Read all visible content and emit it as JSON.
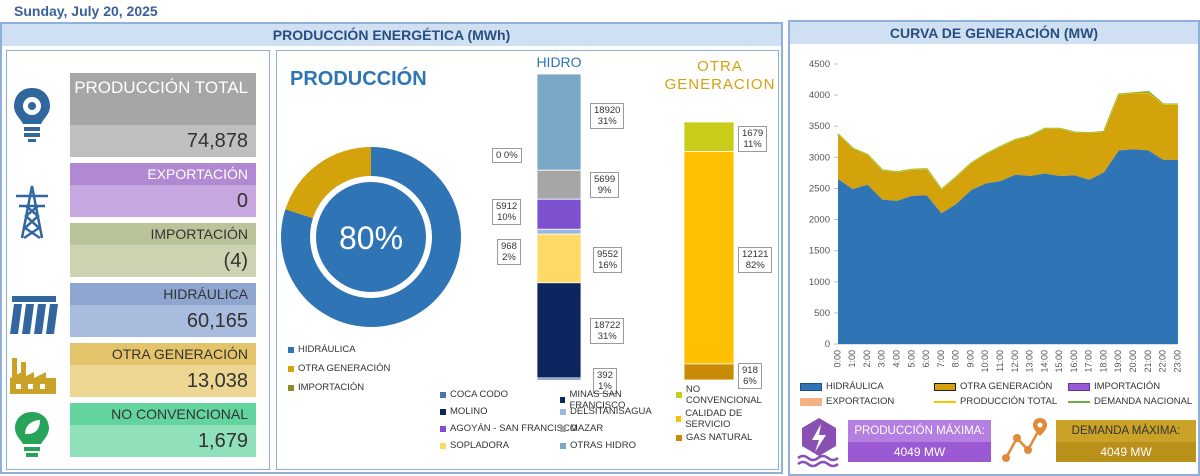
{
  "date": "Sunday, July 20, 2025",
  "left_panel": {
    "title": "PRODUCCIÓN ENERGÉTICA (MWh)",
    "kpis": [
      {
        "label": "PRODUCCIÓN TOTAL",
        "value": "74,878",
        "color": "#a6a6a6",
        "value_bg": "#bfbfbf",
        "icon": "bulb-gear-icon"
      },
      {
        "label": "EXPORTACIÓN",
        "value": "0",
        "color": "#b188d2",
        "value_bg": "#c7a7df",
        "icon": "transmission-tower-icon"
      },
      {
        "label": "IMPORTACIÓN",
        "value": "(4)",
        "color": "#b9c49a",
        "value_bg": "#cbd3b1",
        "icon": ""
      },
      {
        "label": "HIDRÁULICA",
        "value": "60,165",
        "color": "#8ea5cf",
        "value_bg": "#a9bcdd",
        "icon": "dam-icon"
      },
      {
        "label": "OTRA GENERACIÓN",
        "value": "13,038",
        "color": "#e4c46a",
        "value_bg": "#ecd692",
        "icon": "factory-icon"
      },
      {
        "label": "NO CONVENCIONAL",
        "value": "1,679",
        "color": "#63d49d",
        "value_bg": "#90e0b9",
        "icon": "eco-bulb-icon"
      }
    ]
  },
  "production_chart": {
    "title": "PRODUCCIÓN",
    "center_label": "80%",
    "legend": [
      "HIDRÁULICA",
      "OTRA GENERACIÓN",
      "IMPORTACIÓN"
    ],
    "hidro_title": "HIDRO",
    "otra_title_line1": "OTRA",
    "otra_title_line2": "GENERACION",
    "hidro_legend": [
      "COCA CODO",
      "MINAS SAN FRANCISCO",
      "MOLINO",
      "DELSITANISAGUA",
      "AGOYÁN - SAN FRANCISCO",
      "MAZAR",
      "SOPLADORA",
      "OTRAS HIDRO"
    ],
    "otra_legend": [
      "NO CONVENCIONAL",
      "CALIDAD DE SERVICIO",
      "GAS NATURAL"
    ],
    "hidro_callouts": {
      "c1_v": "18920",
      "c1_p": "31%",
      "c2": "0  0%",
      "c3_v": "5699",
      "c3_p": "9%",
      "c4_v": "5912",
      "c4_p": "10%",
      "c5_v": "968",
      "c5_p": "2%",
      "c6_v": "9552",
      "c6_p": "16%",
      "c7_v": "18722",
      "c7_p": "31%",
      "c8_v": "392",
      "c8_p": "1%"
    },
    "otra_callouts": {
      "c1_v": "1679",
      "c1_p": "11%",
      "c2_v": "12121",
      "c2_p": "82%",
      "c3_v": "918",
      "c3_p": "6%"
    }
  },
  "right_panel": {
    "title": "CURVA DE GENERACIÓN (MW)",
    "legend": [
      "HIDRÁULICA",
      "OTRA GENERACIÓN",
      "IMPORTACIÓN",
      "EXPORTACION",
      "PRODUCCIÓN TOTAL",
      "DEMANDA NACIONAL"
    ],
    "stat1_label": "PRODUCCIÓN MÁXIMA:",
    "stat1_value": "4049 MW",
    "stat2_label": "DEMANDA MÁXIMA:",
    "stat2_value": "4049 MW"
  },
  "colors": {
    "hidraulica": "#2f75b6",
    "otra": "#d4a20a",
    "importacion": "#8d8a2a",
    "stat1": "#b47fe0",
    "stat2": "#c9a227"
  },
  "chart_data": [
    {
      "type": "pie",
      "title": "PRODUCCIÓN",
      "labels": [
        "HIDRÁULICA",
        "OTRA GENERACIÓN",
        "IMPORTACIÓN"
      ],
      "values": [
        80,
        20,
        0
      ],
      "center_label": "80%"
    },
    {
      "type": "bar",
      "title": "HIDRO",
      "stacked": true,
      "categories": [
        "OTRAS HIDRO",
        "SOPLADORA",
        "MAZAR",
        "AGOYÁN - SAN FRANCISCO",
        "DELSITANISAGUA",
        "MOLINO",
        "MINAS SAN FRANCISCO",
        "COCA CODO"
      ],
      "values": [
        18920,
        0,
        5699,
        5912,
        968,
        9552,
        18722,
        392
      ],
      "percent": [
        "31%",
        "0%",
        "9%",
        "10%",
        "2%",
        "16%",
        "31%",
        "1%"
      ],
      "segment_colors": [
        "#7ba7c6",
        "#ffffff",
        "#a6a6a6",
        "#7d50cf",
        "#9bb9e0",
        "#ffd966",
        "#0d2660",
        "#4a73b5"
      ]
    },
    {
      "type": "bar",
      "title": "OTRA GENERACION",
      "stacked": true,
      "categories": [
        "NO CONVENCIONAL",
        "CALIDAD DE SERVICIO",
        "GAS NATURAL"
      ],
      "values": [
        1679,
        12121,
        918
      ],
      "percent": [
        "11%",
        "82%",
        "6%"
      ],
      "segment_colors": [
        "#c9cc18",
        "#ffc000",
        "#c98a05"
      ]
    },
    {
      "type": "area",
      "title": "CURVA DE GENERACIÓN (MW)",
      "x": [
        "0:00",
        "1:00",
        "2:00",
        "3:00",
        "4:00",
        "5:00",
        "6:00",
        "7:00",
        "8:00",
        "9:00",
        "10:00",
        "11:00",
        "12:00",
        "13:00",
        "14:00",
        "15:00",
        "16:00",
        "17:00",
        "18:00",
        "19:00",
        "20:00",
        "21:00",
        "22:00",
        "23:00"
      ],
      "ylim": [
        0,
        4500
      ],
      "yticks": [
        0,
        500,
        1000,
        1500,
        2000,
        2500,
        3000,
        3500,
        4000,
        4500
      ],
      "series": [
        {
          "name": "HIDRÁULICA",
          "values": [
            2650,
            2490,
            2560,
            2320,
            2300,
            2380,
            2390,
            2100,
            2250,
            2470,
            2580,
            2620,
            2720,
            2700,
            2740,
            2700,
            2710,
            2640,
            2760,
            3110,
            3130,
            3110,
            2960,
            2960
          ]
        },
        {
          "name": "OTRA GENERACIÓN",
          "values": [
            720,
            650,
            480,
            470,
            460,
            420,
            420,
            380,
            430,
            430,
            470,
            550,
            560,
            640,
            720,
            760,
            690,
            750,
            650,
            900,
            900,
            920,
            890,
            890
          ]
        },
        {
          "name": "IMPORTACIÓN",
          "values": [
            0,
            0,
            0,
            0,
            0,
            0,
            0,
            0,
            0,
            0,
            0,
            0,
            0,
            0,
            0,
            0,
            0,
            0,
            0,
            0,
            0,
            0,
            0,
            0
          ]
        },
        {
          "name": "PRODUCCIÓN TOTAL",
          "values": [
            3370,
            3140,
            3040,
            2790,
            2760,
            2800,
            2810,
            2480,
            2680,
            2900,
            3050,
            3170,
            3280,
            3340,
            3460,
            3460,
            3400,
            3390,
            3410,
            4010,
            4030,
            4030,
            3850,
            3850
          ]
        },
        {
          "name": "DEMANDA NACIONAL",
          "values": [
            3370,
            3140,
            3040,
            2790,
            2760,
            2800,
            2810,
            2480,
            2680,
            2900,
            3050,
            3170,
            3280,
            3340,
            3460,
            3460,
            3400,
            3390,
            3410,
            4010,
            4030,
            4049,
            3850,
            3850
          ]
        }
      ]
    }
  ]
}
